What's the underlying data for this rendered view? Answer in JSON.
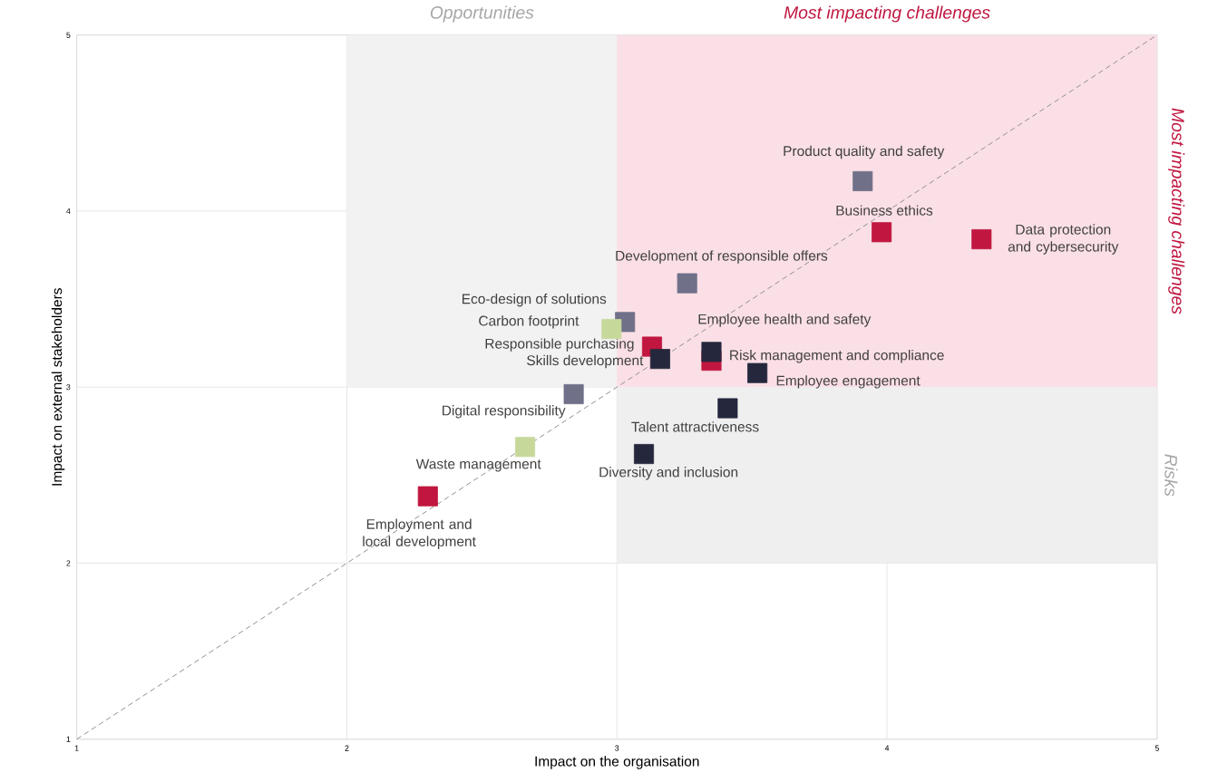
{
  "chart_data": {
    "type": "scatter",
    "xlabel": "Impact on the organisation",
    "ylabel": "Impact on external stakeholders",
    "xlim": [
      1,
      5
    ],
    "ylim": [
      1,
      5
    ],
    "xticks": [
      1,
      2,
      3,
      4,
      5
    ],
    "yticks": [
      1,
      2,
      3,
      4,
      5
    ],
    "grid": true,
    "marker": "square",
    "annotations": [
      "Most impacting challenges"
    ],
    "series": [
      {
        "type": "area",
        "name": "Opportunities",
        "color": "#f2f2f2",
        "marker": "none",
        "x": [
          2,
          2,
          3,
          3,
          2
        ],
        "values": [
          3,
          5,
          5,
          3,
          3
        ]
      },
      {
        "type": "area",
        "name": "Most impacting challenges",
        "color": "#fbdfe6",
        "marker": "none",
        "x": [
          3,
          3,
          5,
          5,
          3
        ],
        "values": [
          3,
          5,
          5,
          3,
          3
        ]
      },
      {
        "type": "area",
        "name": "Risks",
        "color": "#efefef",
        "marker": "none",
        "x": [
          3,
          3,
          5,
          5,
          3
        ],
        "values": [
          2,
          3,
          3,
          2,
          2
        ]
      },
      {
        "type": "line",
        "color": "#8c8c8c",
        "line_style": "dashed",
        "marker": "none",
        "x": [
          1,
          5
        ],
        "values": [
          1,
          5
        ]
      },
      {
        "x": [
          3.91,
          3.98,
          4.35,
          3.26,
          3.03,
          2.98,
          3.13,
          3.16,
          3.35,
          3.35,
          3.52,
          3.41,
          3.1,
          2.84,
          2.66,
          2.3
        ],
        "values": [
          4.17,
          3.88,
          3.84,
          3.59,
          3.37,
          3.33,
          3.23,
          3.16,
          3.15,
          3.2,
          3.08,
          2.88,
          2.62,
          2.96,
          2.66,
          2.38
        ],
        "colors": [
          "#707089",
          "#c0163f",
          "#c0163f",
          "#707089",
          "#707089",
          "#c6d99b",
          "#c0163f",
          "#25283d",
          "#c0163f",
          "#25283d",
          "#25283d",
          "#25283d",
          "#25283d",
          "#707089",
          "#c6d99b",
          "#c0163f"
        ],
        "value_labels": [
          "Product quality and safety",
          "Business ethics",
          "Data protection and cybersecurity",
          "Development of responsible offers",
          "Eco-design of solutions",
          "Carbon footprint",
          "Responsible purchasing",
          "Skills development",
          "Risk management and compliance",
          "Employee health and safety",
          "Employee engagement",
          "Talent attractiveness",
          "Diversity and inclusion",
          "Digital responsibility",
          "Waste management",
          "Employment and local development"
        ]
      }
    ]
  }
}
